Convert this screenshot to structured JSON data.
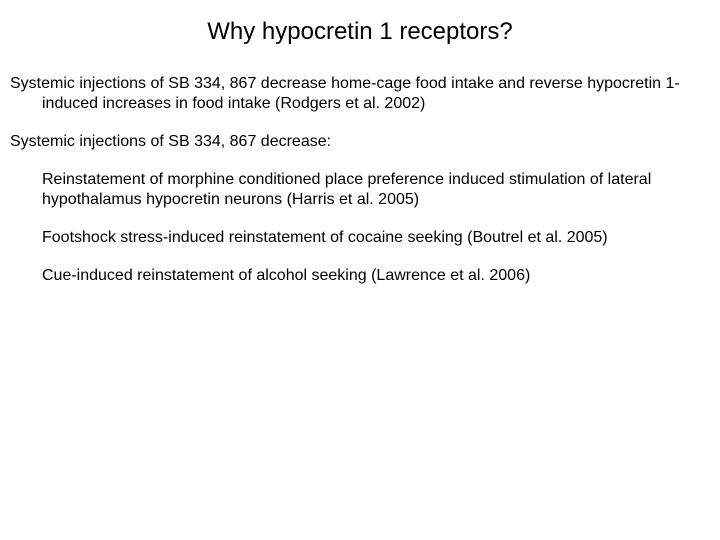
{
  "background_color": "#ffffff",
  "text_color": "#000000",
  "font_family": "Comic Sans MS",
  "title_fontsize": 24,
  "body_fontsize": 16,
  "title": "Why hypocretin 1 receptors?",
  "para1": "Systemic injections of SB 334, 867 decrease home-cage food intake and reverse hypocretin 1-induced increases in food intake (Rodgers et al. 2002)",
  "para2": "Systemic injections of SB 334, 867 decrease:",
  "sub1": "Reinstatement of morphine conditioned place preference induced stimulation of lateral hypothalamus hypocretin neurons (Harris et al. 2005)",
  "sub2": "Footshock stress-induced reinstatement of cocaine seeking (Boutrel et al. 2005)",
  "sub3": "Cue-induced reinstatement of alcohol seeking (Lawrence et al. 2006)"
}
